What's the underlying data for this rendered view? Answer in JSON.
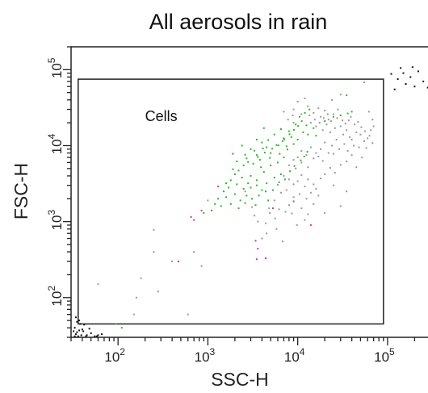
{
  "chart_data": {
    "type": "scatter",
    "title": "All aerosols in rain",
    "xlabel": "SSC-H",
    "ylabel": "FSC-H",
    "xscale": "log",
    "yscale": "log",
    "xlim": [
      30,
      300000
    ],
    "ylim": [
      30,
      200000
    ],
    "x_ticks": [
      {
        "base": "10",
        "exp": "2",
        "value": 100
      },
      {
        "base": "10",
        "exp": "3",
        "value": 1000
      },
      {
        "base": "10",
        "exp": "4",
        "value": 10000
      },
      {
        "base": "10",
        "exp": "5",
        "value": 100000
      }
    ],
    "y_ticks": [
      {
        "base": "10",
        "exp": "2",
        "value": 100
      },
      {
        "base": "10",
        "exp": "3",
        "value": 1000
      },
      {
        "base": "10",
        "exp": "4",
        "value": 10000
      },
      {
        "base": "10",
        "exp": "5",
        "value": 100000
      }
    ],
    "gate": {
      "label": "Cells",
      "x_range": [
        36,
        90000
      ],
      "y_range": [
        45,
        75000
      ]
    },
    "colors": {
      "gray": "#999999",
      "green": "#22bb22",
      "magenta": "#dd22cc",
      "black": "#111111"
    },
    "series": [
      {
        "color_key": "green",
        "points": [
          [
            9500,
            19000
          ],
          [
            8000,
            15500
          ],
          [
            10500,
            24000
          ],
          [
            6500,
            16500
          ],
          [
            12000,
            27000
          ],
          [
            5500,
            14000
          ],
          [
            7000,
            12500
          ],
          [
            4500,
            9500
          ],
          [
            4000,
            11000
          ],
          [
            5000,
            8000
          ],
          [
            3500,
            7500
          ],
          [
            3000,
            9000
          ],
          [
            3800,
            6500
          ],
          [
            2700,
            6800
          ],
          [
            2500,
            5500
          ],
          [
            3200,
            5800
          ],
          [
            2200,
            4700
          ],
          [
            2000,
            4200
          ],
          [
            2400,
            3800
          ],
          [
            1800,
            3500
          ],
          [
            3000,
            4000
          ],
          [
            2800,
            3200
          ],
          [
            3500,
            3500
          ],
          [
            4200,
            4500
          ],
          [
            5000,
            5500
          ],
          [
            6000,
            6000
          ],
          [
            7000,
            7000
          ],
          [
            1700,
            2800
          ],
          [
            1500,
            2500
          ],
          [
            2000,
            2300
          ],
          [
            2500,
            2700
          ],
          [
            3000,
            2800
          ],
          [
            3500,
            3000
          ],
          [
            4000,
            2600
          ],
          [
            4500,
            3200
          ],
          [
            5500,
            3800
          ],
          [
            6500,
            4200
          ],
          [
            2100,
            6200
          ],
          [
            2600,
            7600
          ],
          [
            3300,
            8600
          ],
          [
            4100,
            9200
          ],
          [
            4700,
            11800
          ],
          [
            5800,
            10200
          ],
          [
            6800,
            11500
          ],
          [
            7500,
            9800
          ],
          [
            8500,
            13000
          ],
          [
            9000,
            10500
          ],
          [
            10000,
            12000
          ],
          [
            11500,
            15000
          ],
          [
            12500,
            18500
          ],
          [
            13000,
            14000
          ],
          [
            15000,
            17000
          ],
          [
            16000,
            13500
          ],
          [
            20000,
            21000
          ],
          [
            25000,
            24000
          ],
          [
            30000,
            25000
          ],
          [
            36000,
            26500
          ],
          [
            40000,
            28000
          ],
          [
            35000,
            46000
          ],
          [
            1300,
            2000
          ],
          [
            1600,
            2100
          ],
          [
            2300,
            1900
          ],
          [
            2700,
            2200
          ],
          [
            3100,
            2000
          ],
          [
            3700,
            2200
          ],
          [
            4400,
            2500
          ],
          [
            1200,
            1700
          ],
          [
            1400,
            1600
          ],
          [
            1800,
            1700
          ],
          [
            2200,
            1500
          ],
          [
            2600,
            1750
          ],
          [
            3400,
            1650
          ],
          [
            4700,
            1900
          ],
          [
            5300,
            2600
          ],
          [
            6200,
            3300
          ],
          [
            7200,
            3600
          ],
          [
            8200,
            4600
          ],
          [
            9200,
            5400
          ],
          [
            10800,
            6400
          ],
          [
            11800,
            7200
          ],
          [
            12800,
            8300
          ],
          [
            1900,
            4900
          ],
          [
            2800,
            6100
          ],
          [
            3600,
            7100
          ],
          [
            4300,
            8100
          ],
          [
            5200,
            9100
          ],
          [
            6100,
            10100
          ],
          [
            7100,
            12100
          ],
          [
            8100,
            14100
          ],
          [
            9100,
            16100
          ],
          [
            10100,
            18100
          ],
          [
            11100,
            21000
          ],
          [
            4200,
            17000
          ],
          [
            3500,
            12000
          ],
          [
            13500,
            30000
          ],
          [
            2400,
            10000
          ],
          [
            1600,
            3200
          ],
          [
            1100,
            1400
          ],
          [
            900,
            1300
          ],
          [
            2100,
            3100
          ],
          [
            3900,
            5200
          ],
          [
            4900,
            6900
          ],
          [
            6300,
            7800
          ],
          [
            7700,
            8900
          ],
          [
            95,
            45
          ],
          [
            110,
            40
          ]
        ]
      },
      {
        "color_key": "gray",
        "points": [
          [
            12000,
            42000
          ],
          [
            10000,
            38000
          ],
          [
            9000,
            30000
          ],
          [
            7000,
            28000
          ],
          [
            13000,
            33000
          ],
          [
            15000,
            27000
          ],
          [
            17000,
            31000
          ],
          [
            18000,
            24000
          ],
          [
            20000,
            29000
          ],
          [
            22000,
            22000
          ],
          [
            25000,
            26000
          ],
          [
            28000,
            30000
          ],
          [
            14000,
            20000
          ],
          [
            16000,
            18000
          ],
          [
            19000,
            16000
          ],
          [
            21000,
            19000
          ],
          [
            23000,
            15000
          ],
          [
            26000,
            17000
          ],
          [
            30000,
            18000
          ],
          [
            32000,
            14000
          ],
          [
            35000,
            16000
          ],
          [
            38000,
            13000
          ],
          [
            40000,
            12000
          ],
          [
            45000,
            15000
          ],
          [
            50000,
            14000
          ],
          [
            27000,
            12000
          ],
          [
            24000,
            10000
          ],
          [
            20000,
            11000
          ],
          [
            18000,
            9000
          ],
          [
            16000,
            8000
          ],
          [
            14000,
            9500
          ],
          [
            12500,
            7500
          ],
          [
            11000,
            8500
          ],
          [
            10000,
            7000
          ],
          [
            9000,
            6500
          ],
          [
            8000,
            5500
          ],
          [
            9500,
            5000
          ],
          [
            11000,
            6000
          ],
          [
            13000,
            5200
          ],
          [
            15000,
            6800
          ],
          [
            17000,
            7200
          ],
          [
            19000,
            6300
          ],
          [
            22000,
            8000
          ],
          [
            25000,
            7800
          ],
          [
            29000,
            9000
          ],
          [
            33000,
            10500
          ],
          [
            36000,
            8500
          ],
          [
            42000,
            10000
          ],
          [
            48000,
            9500
          ],
          [
            55000,
            11500
          ],
          [
            60000,
            12500
          ],
          [
            65000,
            16000
          ],
          [
            70000,
            18000
          ],
          [
            7000,
            4000
          ],
          [
            8000,
            3600
          ],
          [
            9000,
            3100
          ],
          [
            10000,
            3400
          ],
          [
            11000,
            4100
          ],
          [
            12000,
            2900
          ],
          [
            13000,
            3600
          ],
          [
            15000,
            3100
          ],
          [
            14000,
            2400
          ],
          [
            16000,
            2700
          ],
          [
            18000,
            3700
          ],
          [
            20000,
            4200
          ],
          [
            23000,
            5100
          ],
          [
            26000,
            4400
          ],
          [
            30000,
            5600
          ],
          [
            35000,
            6200
          ],
          [
            40000,
            7500
          ],
          [
            9000,
            2100
          ],
          [
            10500,
            2300
          ],
          [
            12500,
            2000
          ],
          [
            15000,
            1700
          ],
          [
            17000,
            2200
          ],
          [
            11000,
            1500
          ],
          [
            13000,
            1250
          ],
          [
            8000,
            1650
          ],
          [
            6500,
            2400
          ],
          [
            6000,
            3050
          ],
          [
            7500,
            2600
          ],
          [
            5500,
            1900
          ],
          [
            4800,
            1500
          ],
          [
            20000,
            1300
          ],
          [
            30000,
            1600
          ],
          [
            35000,
            2500
          ],
          [
            25000,
            3000
          ],
          [
            45000,
            5200
          ],
          [
            52000,
            7000
          ],
          [
            58000,
            9300
          ],
          [
            68000,
            22000
          ],
          [
            62000,
            28000
          ],
          [
            30000,
            47000
          ],
          [
            24000,
            40000
          ],
          [
            55000,
            68000
          ],
          [
            9000,
            20000
          ],
          [
            7800,
            22000
          ],
          [
            8800,
            25000
          ],
          [
            11000,
            26000
          ],
          [
            13500,
            25000
          ],
          [
            15500,
            22000
          ],
          [
            17500,
            20000
          ],
          [
            19500,
            23000
          ],
          [
            21500,
            26000
          ],
          [
            23500,
            21000
          ],
          [
            27500,
            23000
          ],
          [
            31500,
            21500
          ],
          [
            34000,
            19500
          ],
          [
            37000,
            21500
          ],
          [
            39000,
            24000
          ],
          [
            43000,
            19000
          ],
          [
            47000,
            20500
          ],
          [
            51000,
            17500
          ],
          [
            56000,
            15500
          ],
          [
            63000,
            13500
          ],
          [
            68000,
            10800
          ],
          [
            250,
            780
          ],
          [
            250,
            400
          ],
          [
            180,
            180
          ],
          [
            160,
            100
          ],
          [
            150,
            60
          ],
          [
            60,
            150
          ],
          [
            280,
            120
          ],
          [
            400,
            300
          ],
          [
            700,
            400
          ],
          [
            600,
            60
          ],
          [
            850,
            260
          ],
          [
            3600,
            1000
          ],
          [
            4400,
            950
          ],
          [
            5800,
            800
          ],
          [
            4000,
            600
          ],
          [
            6800,
            550
          ],
          [
            3300,
            1200
          ],
          [
            12000,
            1050
          ],
          [
            7300,
            1350
          ],
          [
            8600,
            1280
          ],
          [
            9800,
            900
          ],
          [
            2600,
            2500
          ],
          [
            1000,
            1900
          ],
          [
            4500,
            700
          ],
          [
            5600,
            1100
          ],
          [
            3100,
            1550
          ],
          [
            6200,
            1450
          ],
          [
            4900,
            1300
          ]
        ]
      },
      {
        "color_key": "magenta",
        "points": [
          [
            1900,
            7800
          ],
          [
            1300,
            2900
          ],
          [
            850,
            1400
          ],
          [
            650,
            1150
          ],
          [
            470,
            300
          ],
          [
            3600,
            440
          ],
          [
            3500,
            320
          ],
          [
            4400,
            330
          ],
          [
            3400,
            560
          ],
          [
            5300,
            1500
          ],
          [
            14000,
            900
          ],
          [
            700,
            1050
          ],
          [
            9000,
            1850
          ]
        ]
      },
      {
        "color_key": "black",
        "points": [
          [
            120000,
            55000
          ],
          [
            130000,
            75000
          ],
          [
            150000,
            90000
          ],
          [
            180000,
            80000
          ],
          [
            200000,
            60000
          ],
          [
            250000,
            70000
          ],
          [
            160000,
            65000
          ],
          [
            140000,
            105000
          ],
          [
            220000,
            95000
          ],
          [
            280000,
            58000
          ],
          [
            110000,
            88000
          ],
          [
            190000,
            108000
          ],
          [
            33,
            40
          ],
          [
            35,
            35
          ],
          [
            38,
            45
          ],
          [
            34,
            33
          ],
          [
            40,
            38
          ],
          [
            36,
            31
          ],
          [
            32,
            36
          ],
          [
            45,
            32
          ],
          [
            50,
            34
          ],
          [
            55,
            31
          ],
          [
            60,
            32
          ],
          [
            42,
            44
          ],
          [
            37,
            50
          ],
          [
            34,
            55
          ],
          [
            41,
            36
          ],
          [
            48,
            39
          ],
          [
            44,
            31
          ],
          [
            58,
            31
          ],
          [
            66,
            33
          ],
          [
            39,
            32
          ],
          [
            33,
            31
          ],
          [
            35,
            48
          ],
          [
            37,
            37
          ]
        ]
      }
    ]
  }
}
